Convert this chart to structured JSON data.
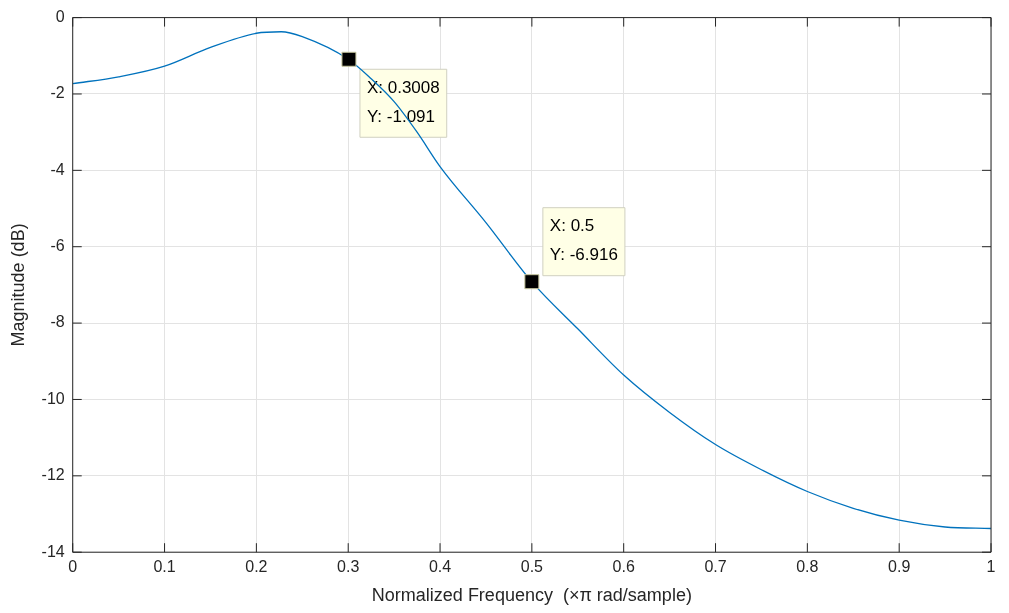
{
  "chart_data": {
    "type": "line",
    "xlabel": "Normalized Frequency  (×π rad/sample)",
    "ylabel": "Magnitude (dB)",
    "xlim": [
      0,
      1
    ],
    "xticks": [
      0,
      0.1,
      0.2,
      0.3,
      0.4,
      0.5,
      0.6,
      0.7,
      0.8,
      0.9,
      1
    ],
    "ylim": [
      -14,
      0
    ],
    "yticks": [
      -14,
      -12,
      -10,
      -8,
      -6,
      -4,
      -2,
      0
    ],
    "grid": true,
    "legend": false,
    "marker": "none",
    "line_style": "solid",
    "series": [
      {
        "color": "#0072bd",
        "x": [
          0,
          0.05,
          0.1,
          0.15,
          0.2,
          0.227,
          0.25,
          0.3,
          0.325,
          0.35,
          0.375,
          0.4,
          0.45,
          0.5,
          0.55,
          0.6,
          0.65,
          0.7,
          0.75,
          0.8,
          0.85,
          0.9,
          0.95,
          1
        ],
        "values": [
          -1.73,
          -1.55,
          -1.27,
          -0.78,
          -0.41,
          -0.37,
          -0.5,
          -1.09,
          -1.6,
          -2.2,
          -3.0,
          -3.9,
          -5.37,
          -6.92,
          -8.15,
          -9.36,
          -10.34,
          -11.18,
          -11.84,
          -12.41,
          -12.85,
          -13.16,
          -13.34,
          -13.38
        ]
      }
    ],
    "annotations": [
      {
        "text": "X: 0.3008\nY: -1.091",
        "x": 0.3008,
        "y": -1.091
      },
      {
        "text": "X: 0.5\nY: -6.916",
        "x": 0.5,
        "y": -6.916
      }
    ]
  }
}
